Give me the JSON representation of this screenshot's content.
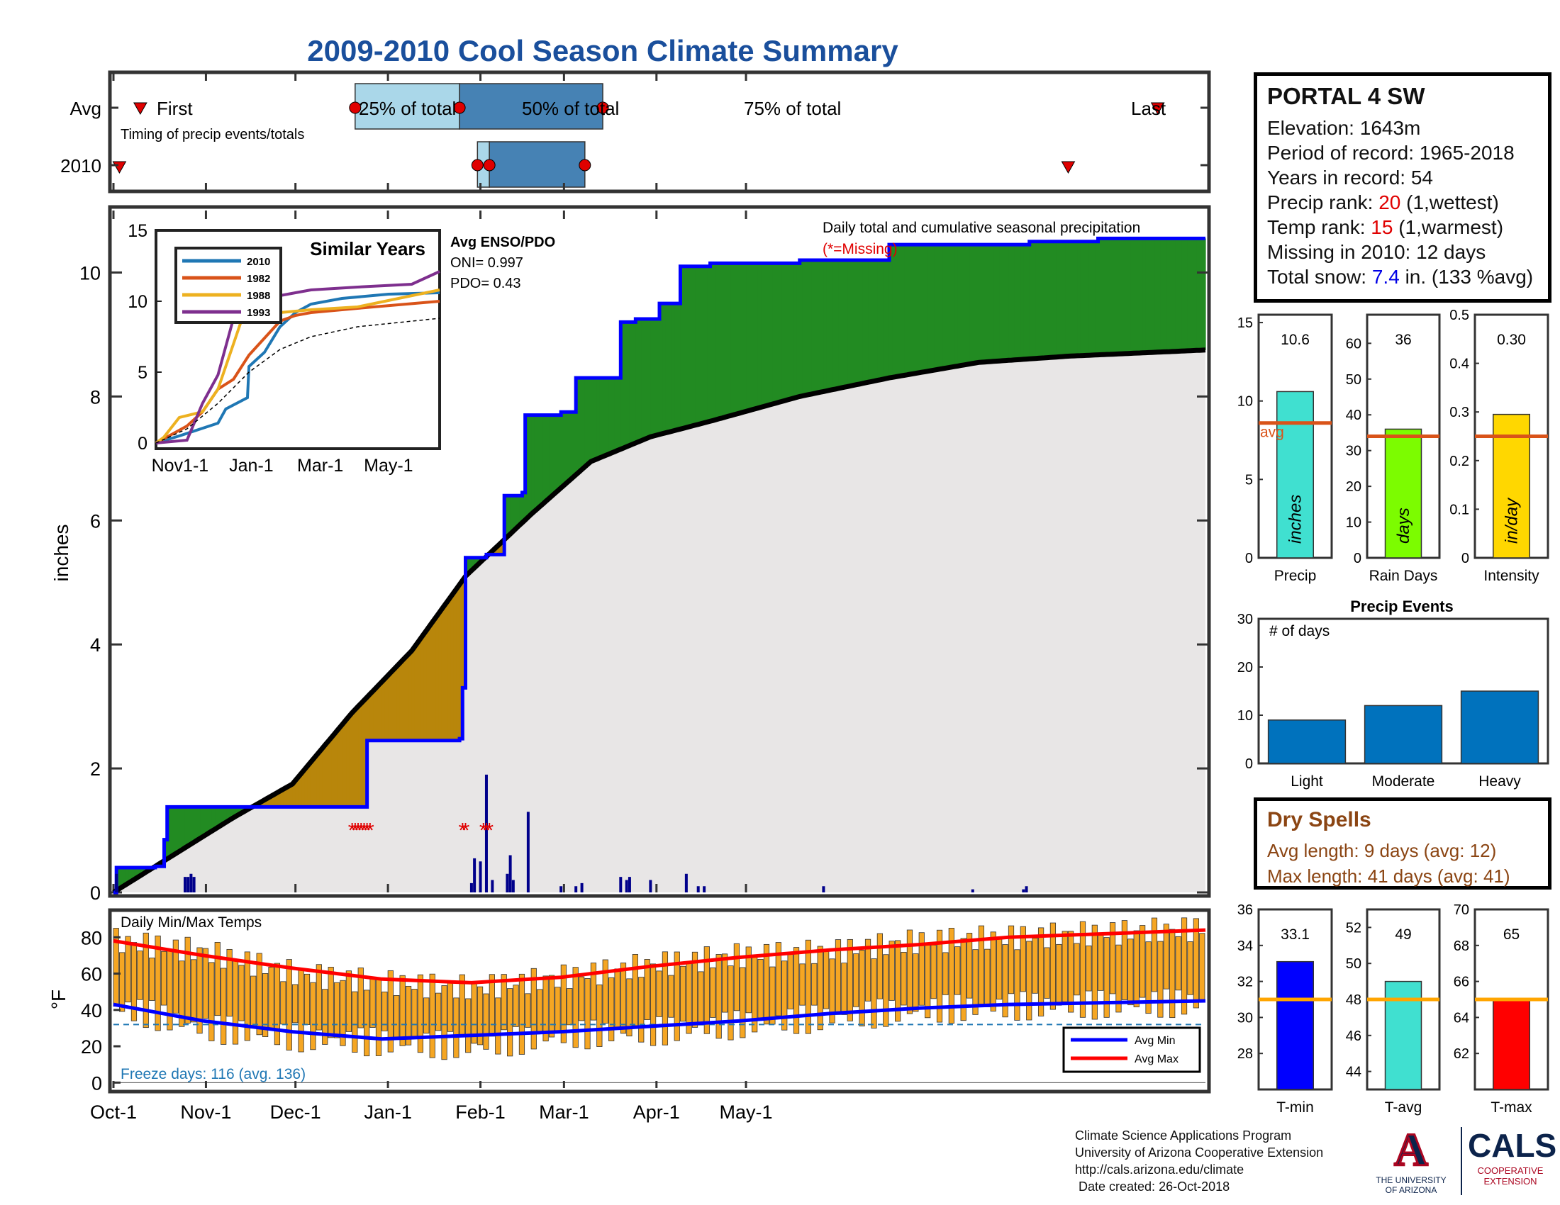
{
  "title": "2009-2010 Cool Season Climate Summary",
  "timing": {
    "row_labels": [
      "Avg",
      "2010"
    ],
    "note": "Timing of precip events/totals",
    "first_label": "First",
    "last_label": "Last",
    "pct_labels": [
      "25% of total",
      "50% of total",
      "75% of total"
    ]
  },
  "station": {
    "name": "PORTAL 4 SW",
    "elevation_label": "Elevation:",
    "elevation": "1643m",
    "period_label": "Period of record:",
    "period": "1965-2018",
    "years_label": "Years in record:",
    "years": "54",
    "precip_rank_label": "Precip rank:",
    "precip_rank": "20",
    "precip_rank_note": "(1,wettest)",
    "temp_rank_label": "Temp rank:",
    "temp_rank": "15",
    "temp_rank_note": "(1,warmest)",
    "missing_label": "Missing in 2010:",
    "missing": "12 days",
    "snow_label": "Total snow:",
    "snow_value": "7.4",
    "snow_unit": "in. (133 %avg)"
  },
  "dry_spells": {
    "title": "Dry Spells",
    "avg_length": "Avg length: 9 days (avg: 12)",
    "max_length": "Max length: 41 days (avg: 41)"
  },
  "footer": {
    "lines": [
      "Climate Science Applications Program",
      "University of Arizona Cooperative Extension",
      "http://cals.arizona.edu/climate",
      " Date created: 26-Oct-2018"
    ]
  },
  "logos": {
    "ua_letter": "A",
    "ua_text": [
      "THE UNIVERSITY",
      "OF ARIZONA"
    ],
    "cals_text": "CALS",
    "cals_sub": [
      "COOPERATIVE",
      "EXTENSION"
    ]
  },
  "colors": {
    "navy_title": "#1a4f9c",
    "above_fill": "#228b22",
    "below_fill": "#b8860b",
    "climo_fill": "#e8e6e6",
    "cum_line": "#0000ff",
    "daily_bars": "#00008b",
    "temp_bars": "#f5a623",
    "avg_min": "#0000ff",
    "avg_max": "#ff0000",
    "freeze_line": "#1f77b4",
    "marker_red": "#e00000",
    "box_light": "#aad7e9",
    "box_dark": "#4682b4"
  },
  "chart_data": [
    {
      "type": "area",
      "name": "main-precip",
      "annotation": "Daily total and cumulative seasonal precipitation",
      "missing_note": "(*=Missing)",
      "ylabel": "inches",
      "ylim": [
        0,
        11
      ],
      "yticks": [
        0,
        2,
        4,
        6,
        8,
        10
      ],
      "xticks": [
        "Oct-1",
        "Nov-1",
        "Dec-1",
        "Jan-1",
        "Feb-1",
        "Mar-1",
        "Apr-1",
        "May-1"
      ],
      "cumulative_2010": [
        [
          0,
          0
        ],
        [
          1,
          0.4
        ],
        [
          14,
          0.42
        ],
        [
          17,
          0.85
        ],
        [
          18,
          1.38
        ],
        [
          28,
          1.38
        ],
        [
          84,
          1.38
        ],
        [
          85,
          2.45
        ],
        [
          116,
          2.48
        ],
        [
          117,
          3.3
        ],
        [
          118,
          5.4
        ],
        [
          125,
          5.45
        ],
        [
          131,
          6.4
        ],
        [
          137,
          6.45
        ],
        [
          138,
          7.7
        ],
        [
          150,
          7.75
        ],
        [
          155,
          8.3
        ],
        [
          166,
          8.3
        ],
        [
          170,
          9.2
        ],
        [
          175,
          9.25
        ],
        [
          183,
          9.5
        ],
        [
          190,
          10.1
        ],
        [
          200,
          10.15
        ],
        [
          230,
          10.2
        ],
        [
          260,
          10.45
        ],
        [
          307,
          10.5
        ],
        [
          330,
          10.55
        ],
        [
          366,
          10.55
        ]
      ],
      "climatology": [
        [
          0,
          0
        ],
        [
          20,
          0.6
        ],
        [
          40,
          1.2
        ],
        [
          60,
          1.75
        ],
        [
          80,
          2.9
        ],
        [
          100,
          3.9
        ],
        [
          118,
          5.1
        ],
        [
          140,
          6.1
        ],
        [
          160,
          6.95
        ],
        [
          180,
          7.35
        ],
        [
          200,
          7.6
        ],
        [
          230,
          8.0
        ],
        [
          260,
          8.3
        ],
        [
          290,
          8.55
        ],
        [
          320,
          8.65
        ],
        [
          366,
          8.75
        ]
      ],
      "daily_precip": [
        [
          1,
          0.3
        ],
        [
          24,
          0.25
        ],
        [
          25,
          0.25
        ],
        [
          26,
          0.3
        ],
        [
          27,
          0.25
        ],
        [
          120,
          0.15
        ],
        [
          121,
          0.55
        ],
        [
          123,
          0.5
        ],
        [
          125,
          1.9
        ],
        [
          127,
          0.2
        ],
        [
          132,
          0.3
        ],
        [
          133,
          0.6
        ],
        [
          134,
          0.2
        ],
        [
          139,
          1.3
        ],
        [
          150,
          0.1
        ],
        [
          155,
          0.1
        ],
        [
          157,
          0.15
        ],
        [
          170,
          0.25
        ],
        [
          172,
          0.2
        ],
        [
          173,
          0.25
        ],
        [
          180,
          0.2
        ],
        [
          192,
          0.3
        ],
        [
          196,
          0.1
        ],
        [
          198,
          0.1
        ],
        [
          238,
          0.1
        ],
        [
          288,
          0.05
        ],
        [
          305,
          0.05
        ],
        [
          306,
          0.1
        ]
      ],
      "missing_days": [
        80,
        81,
        82,
        83,
        84,
        85,
        86,
        117,
        118,
        124,
        125,
        126
      ]
    },
    {
      "type": "line",
      "name": "similar-years",
      "title": "Similar Years",
      "xticks": [
        "Nov1-1",
        "Jan-1",
        "Mar-1",
        "May-1"
      ],
      "yticks": [
        0,
        5,
        10,
        15
      ],
      "ylim": [
        0,
        15
      ],
      "series": [
        {
          "name": "2010",
          "color": "#1f77b4",
          "points": [
            [
              0,
              0
            ],
            [
              30,
              0.5
            ],
            [
              80,
              1.4
            ],
            [
              90,
              2.4
            ],
            [
              118,
              3.2
            ],
            [
              120,
              5.4
            ],
            [
              140,
              6.4
            ],
            [
              160,
              8.2
            ],
            [
              180,
              9.2
            ],
            [
              200,
              9.8
            ],
            [
              240,
              10.2
            ],
            [
              300,
              10.5
            ],
            [
              366,
              10.6
            ]
          ]
        },
        {
          "name": "1982",
          "color": "#d95319",
          "points": [
            [
              0,
              0
            ],
            [
              20,
              0.6
            ],
            [
              40,
              1.2
            ],
            [
              60,
              2.2
            ],
            [
              80,
              3.8
            ],
            [
              100,
              4.5
            ],
            [
              120,
              6.2
            ],
            [
              140,
              7.4
            ],
            [
              160,
              8.6
            ],
            [
              180,
              9.0
            ],
            [
              200,
              9.2
            ],
            [
              260,
              9.5
            ],
            [
              366,
              10.0
            ]
          ]
        },
        {
          "name": "1988",
          "color": "#edb120",
          "points": [
            [
              0,
              0
            ],
            [
              10,
              0.4
            ],
            [
              30,
              1.8
            ],
            [
              60,
              2.2
            ],
            [
              80,
              3.8
            ],
            [
              100,
              7.0
            ],
            [
              110,
              8.6
            ],
            [
              120,
              9.0
            ],
            [
              160,
              9.2
            ],
            [
              200,
              9.4
            ],
            [
              260,
              9.6
            ],
            [
              366,
              10.8
            ]
          ]
        },
        {
          "name": "1993",
          "color": "#7e2f8e",
          "points": [
            [
              0,
              0
            ],
            [
              40,
              0.2
            ],
            [
              60,
              2.8
            ],
            [
              80,
              4.8
            ],
            [
              100,
              8.8
            ],
            [
              120,
              8.9
            ],
            [
              140,
              9.6
            ],
            [
              160,
              10.4
            ],
            [
              180,
              10.6
            ],
            [
              200,
              10.8
            ],
            [
              260,
              11.0
            ],
            [
              330,
              11.2
            ],
            [
              366,
              12.1
            ]
          ]
        },
        {
          "name": "avg",
          "color": "#000000",
          "points": [
            [
              0,
              0
            ],
            [
              40,
              1.0
            ],
            [
              80,
              2.8
            ],
            [
              120,
              5.0
            ],
            [
              160,
              6.6
            ],
            [
              200,
              7.5
            ],
            [
              260,
              8.2
            ],
            [
              366,
              8.8
            ]
          ]
        }
      ]
    },
    {
      "type": "bar",
      "name": "summary-precip",
      "xlabel": "Precip",
      "value": 10.6,
      "value_label": "10.6",
      "avg": 8.6,
      "avg_label": "avg",
      "bar_text": "inches",
      "yticks": [
        0,
        5,
        10,
        15
      ],
      "ylim": [
        0,
        15.5
      ],
      "color": "#40e0d0"
    },
    {
      "type": "bar",
      "name": "summary-raindays",
      "xlabel": "Rain Days",
      "value": 36,
      "value_label": "36",
      "avg": 34,
      "bar_text": "days",
      "yticks": [
        0,
        10,
        20,
        30,
        40,
        50,
        60
      ],
      "ylim": [
        0,
        68
      ],
      "color": "#7cfc00"
    },
    {
      "type": "bar",
      "name": "summary-intensity",
      "xlabel": "Intensity",
      "value": 0.295,
      "value_label": "0.30",
      "avg": 0.25,
      "bar_text": "in/day",
      "yticks": [
        0,
        0.1,
        0.2,
        0.3,
        0.4,
        0.5
      ],
      "ytick_labels": [
        "0",
        "0.1",
        "0.2",
        "0.3",
        "0.4",
        "0.5"
      ],
      "ylim": [
        0,
        0.5
      ],
      "color": "#ffd700"
    },
    {
      "type": "bar",
      "name": "precip-events",
      "title": "Precip Events",
      "note": "# of days",
      "categories": [
        "Light",
        "Moderate",
        "Heavy"
      ],
      "values": [
        9,
        12,
        15
      ],
      "yticks": [
        0,
        10,
        20,
        30
      ],
      "ylim": [
        0,
        30
      ],
      "color": "#0072bd"
    },
    {
      "type": "bar",
      "name": "daily-temps",
      "title": "Daily Min/Max Temps",
      "ylabel": "°F",
      "ylim": [
        -3,
        93
      ],
      "yticks": [
        0,
        20,
        40,
        60,
        80
      ],
      "freeze_threshold": 32,
      "freeze_text": "Freeze days: 116 (avg. 136)",
      "legend": [
        "Avg Min",
        "Avg Max"
      ],
      "avg_min": [
        [
          0,
          43
        ],
        [
          30,
          34
        ],
        [
          60,
          28
        ],
        [
          90,
          24
        ],
        [
          120,
          26
        ],
        [
          150,
          28
        ],
        [
          180,
          31
        ],
        [
          210,
          34
        ],
        [
          240,
          38
        ],
        [
          270,
          41
        ],
        [
          300,
          43
        ],
        [
          366,
          45
        ]
      ],
      "avg_max": [
        [
          0,
          78
        ],
        [
          30,
          70
        ],
        [
          60,
          63
        ],
        [
          90,
          57
        ],
        [
          120,
          55
        ],
        [
          150,
          58
        ],
        [
          180,
          64
        ],
        [
          210,
          69
        ],
        [
          240,
          73
        ],
        [
          270,
          76
        ],
        [
          300,
          80
        ],
        [
          366,
          84
        ]
      ],
      "daily_range_sample": [
        [
          0,
          42,
          78
        ],
        [
          30,
          30,
          72
        ],
        [
          60,
          25,
          60
        ],
        [
          90,
          22,
          55
        ],
        [
          120,
          20,
          52
        ],
        [
          150,
          26,
          58
        ],
        [
          180,
          28,
          65
        ],
        [
          210,
          32,
          70
        ],
        [
          240,
          36,
          72
        ],
        [
          270,
          40,
          78
        ],
        [
          300,
          42,
          80
        ],
        [
          366,
          44,
          85
        ]
      ]
    },
    {
      "type": "bar",
      "name": "summary-tmin",
      "xlabel": "T-min",
      "value": 33.1,
      "value_label": "33.1",
      "avg": 31,
      "yticks": [
        28,
        30,
        32,
        34,
        36
      ],
      "ylim": [
        26,
        36
      ],
      "color": "#0000ff"
    },
    {
      "type": "bar",
      "name": "summary-tavg",
      "xlabel": "T-avg",
      "value": 49,
      "value_label": "49",
      "avg": 48,
      "yticks": [
        44,
        46,
        48,
        50,
        52
      ],
      "ylim": [
        43,
        53
      ],
      "color": "#40e0d0"
    },
    {
      "type": "bar",
      "name": "summary-tmax",
      "xlabel": "T-max",
      "value": 65,
      "value_label": "65",
      "avg": 65,
      "yticks": [
        62,
        64,
        66,
        68,
        70
      ],
      "ylim": [
        60,
        70
      ],
      "color": "#ff0000"
    }
  ]
}
